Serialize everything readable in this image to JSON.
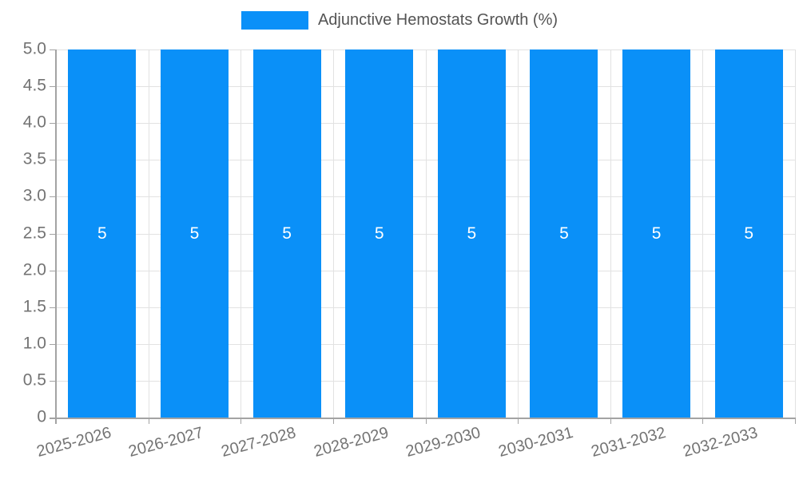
{
  "chart_data": {
    "type": "bar",
    "title": "",
    "legend": {
      "label": "Adjunctive Hemostats Growth (%)",
      "position": "top-center"
    },
    "categories": [
      "2025-2026",
      "2026-2027",
      "2027-2028",
      "2028-2029",
      "2029-2030",
      "2030-2031",
      "2031-2032",
      "2032-2033"
    ],
    "values": [
      5,
      5,
      5,
      5,
      5,
      5,
      5,
      5
    ],
    "value_labels": [
      "5",
      "5",
      "5",
      "5",
      "5",
      "5",
      "5",
      "5"
    ],
    "xlabel": "",
    "ylabel": "",
    "ylim": [
      0,
      5
    ],
    "ytick_step": 0.5,
    "yticks": [
      {
        "value": 0,
        "label": "0"
      },
      {
        "value": 0.5,
        "label": "0.5"
      },
      {
        "value": 1,
        "label": "1.0"
      },
      {
        "value": 1.5,
        "label": "1.5"
      },
      {
        "value": 2,
        "label": "2.0"
      },
      {
        "value": 2.5,
        "label": "2.5"
      },
      {
        "value": 3,
        "label": "3.0"
      },
      {
        "value": 3.5,
        "label": "3.5"
      },
      {
        "value": 4,
        "label": "4.0"
      },
      {
        "value": 4.5,
        "label": "4.5"
      },
      {
        "value": 5,
        "label": "5.0"
      }
    ],
    "grid": true,
    "colors": {
      "bar": "#0a90f8",
      "grid": "#e2e2e2",
      "axis": "#a3a3a3",
      "tick_text": "#737373",
      "legend_text": "#545454",
      "value_text": "#ffffff",
      "background": "#ffffff"
    }
  }
}
